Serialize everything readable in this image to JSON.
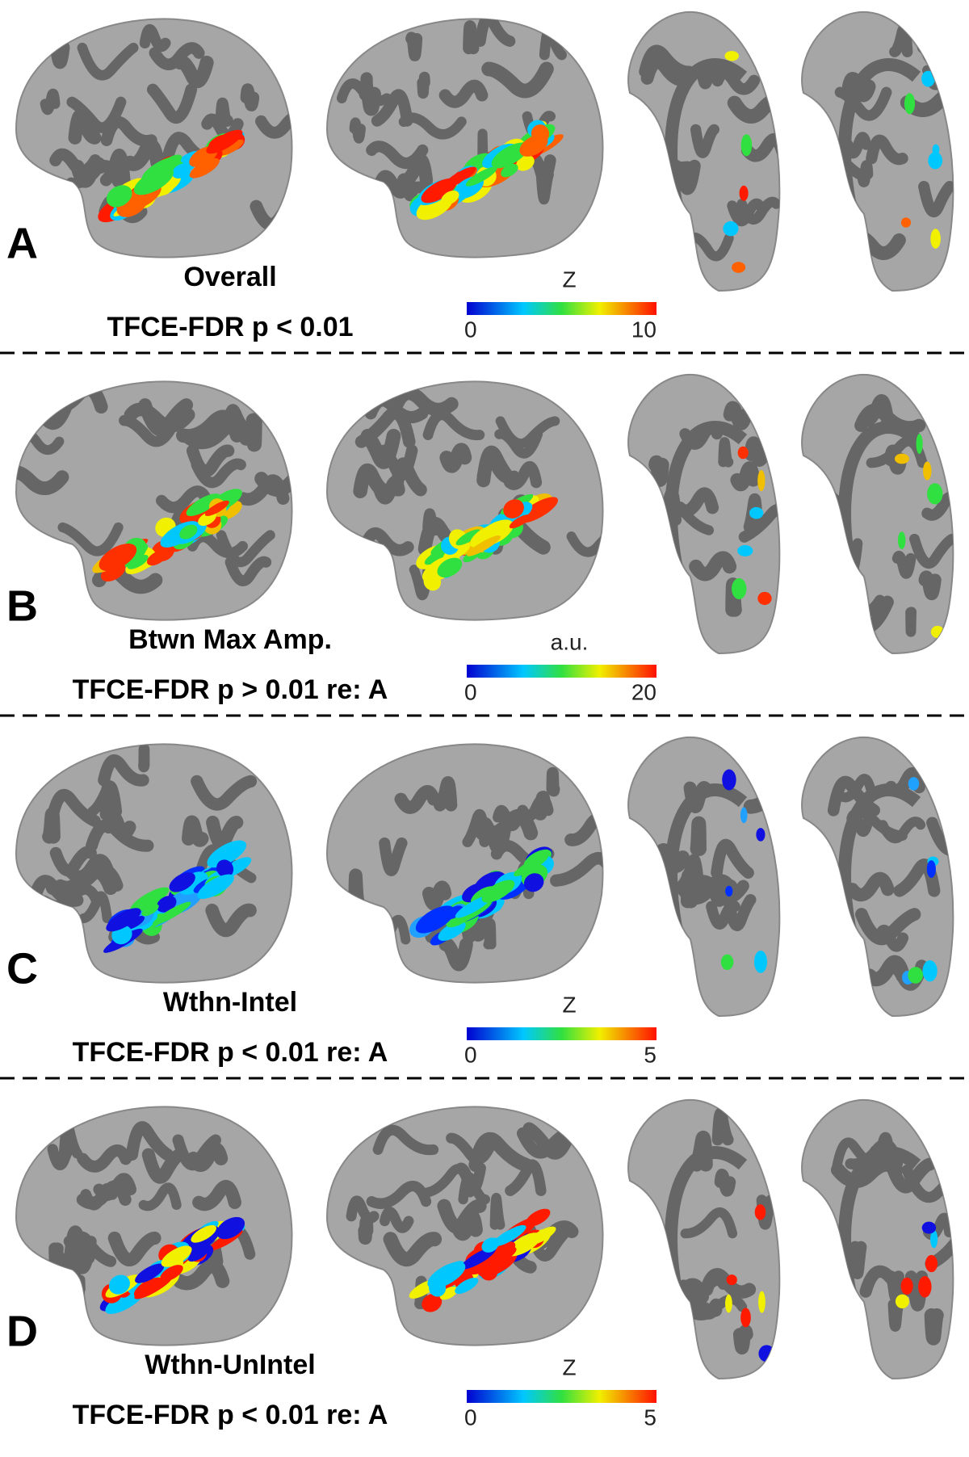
{
  "panels": [
    {
      "letter": "A",
      "title": "Overall",
      "subtitle": "TFCE-FDR p < 0.01",
      "scale_label": "Z",
      "scale_min": 0,
      "scale_max": 10
    },
    {
      "letter": "B",
      "title": "Btwn Max Amp.",
      "subtitle": "TFCE-FDR p > 0.01 re: A",
      "scale_label": "a.u.",
      "scale_min": 0,
      "scale_max": 20
    },
    {
      "letter": "C",
      "title": "Wthn-Intel",
      "subtitle": "TFCE-FDR p < 0.01 re: A",
      "scale_label": "Z",
      "scale_min": 0,
      "scale_max": 5
    },
    {
      "letter": "D",
      "title": "Wthn-UnIntel",
      "subtitle": "TFCE-FDR p < 0.01 re: A",
      "scale_label": "Z",
      "scale_min": 0,
      "scale_max": 5
    }
  ]
}
